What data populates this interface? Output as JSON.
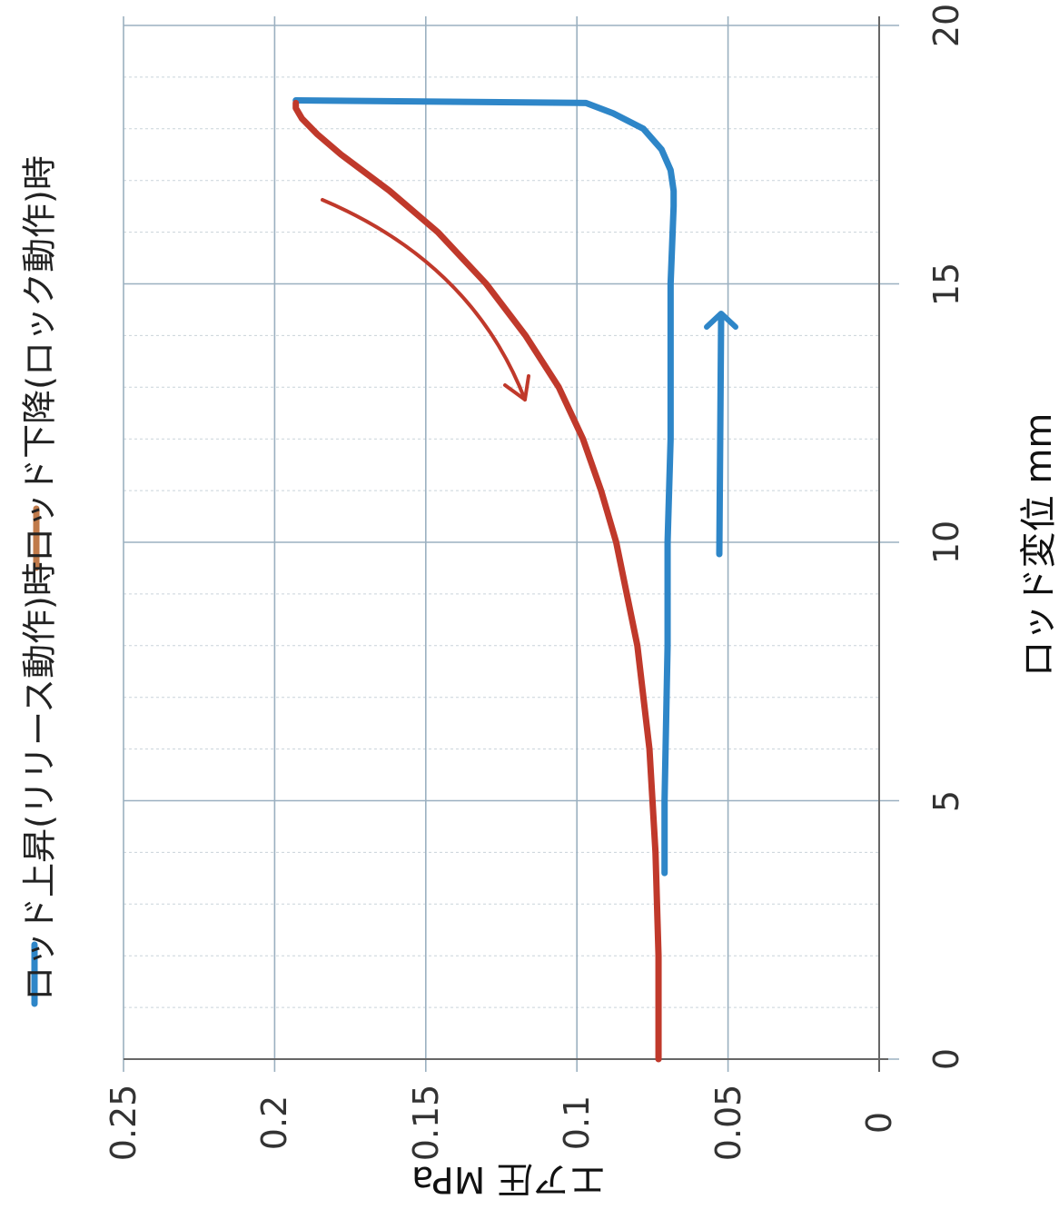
{
  "chart_data": {
    "type": "line",
    "orientation": "rotated-90-clockwise",
    "title": "",
    "xlabel": "ロッド変位 mm",
    "ylabel": "エア圧 MPa",
    "xlim": [
      0,
      20
    ],
    "ylim": [
      0,
      0.25
    ],
    "x_ticks": [
      "0",
      "5",
      "10",
      "15",
      "20"
    ],
    "y_ticks": [
      "0",
      "0.05",
      "0.1",
      "0.15",
      "0.2",
      "0.25"
    ],
    "grid": true,
    "legend_position": "top",
    "colors": {
      "rise": "#2e86c8",
      "fall": "#c0392b",
      "grid": "#9bb0c0"
    },
    "series": [
      {
        "name": "ロッド上昇(リリース動作)時",
        "color": "#2e86c8",
        "x": [
          3.6,
          5,
          8,
          10,
          12,
          15,
          16.5,
          16.8,
          17.2,
          17.6,
          18.0,
          18.3,
          18.5,
          18.55
        ],
        "y": [
          0.071,
          0.071,
          0.07,
          0.07,
          0.069,
          0.069,
          0.068,
          0.068,
          0.069,
          0.072,
          0.078,
          0.088,
          0.097,
          0.193
        ]
      },
      {
        "name": "ロッド下降(ロック動作)時",
        "color": "#c0392b",
        "x": [
          0,
          2,
          4,
          6,
          8,
          10,
          11,
          12,
          13,
          14,
          15,
          16,
          16.8,
          17.5,
          17.9,
          18.2,
          18.4,
          18.5
        ],
        "y": [
          0.073,
          0.073,
          0.074,
          0.076,
          0.08,
          0.087,
          0.092,
          0.098,
          0.106,
          0.117,
          0.13,
          0.146,
          0.162,
          0.178,
          0.186,
          0.191,
          0.193,
          0.193
        ]
      }
    ],
    "annotations": [
      {
        "type": "arrow",
        "color": "#c0392b",
        "description": "down"
      },
      {
        "type": "arrow",
        "color": "#2e86c8",
        "description": "up"
      }
    ]
  }
}
